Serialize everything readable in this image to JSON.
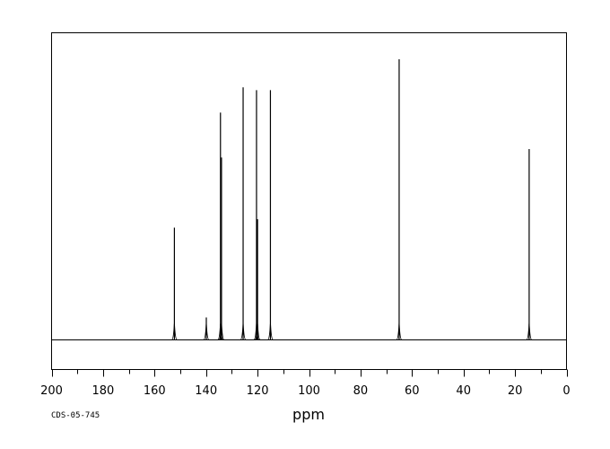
{
  "chart_data": {
    "type": "line",
    "title": "",
    "xlabel": "ppm",
    "ylabel": "",
    "code": "CDS-05-745",
    "xlim": [
      200,
      0
    ],
    "x_ticks": [
      200,
      180,
      160,
      140,
      120,
      100,
      80,
      60,
      40,
      20,
      0
    ],
    "x_minor_step": 10,
    "ylim": [
      0,
      1
    ],
    "grid": false,
    "legend": "none",
    "line_color": "#000000",
    "series": [
      {
        "peaks": [
          {
            "ppm": 152.3,
            "height": 0.4
          },
          {
            "ppm": 139.9,
            "height": 0.08
          },
          {
            "ppm": 134.4,
            "height": 0.81
          },
          {
            "ppm": 134.0,
            "height": 0.65
          },
          {
            "ppm": 125.6,
            "height": 0.9
          },
          {
            "ppm": 120.4,
            "height": 0.89
          },
          {
            "ppm": 120.0,
            "height": 0.43
          },
          {
            "ppm": 115.0,
            "height": 0.89
          },
          {
            "ppm": 65.0,
            "height": 1.0
          },
          {
            "ppm": 14.5,
            "height": 0.68
          }
        ]
      }
    ]
  }
}
